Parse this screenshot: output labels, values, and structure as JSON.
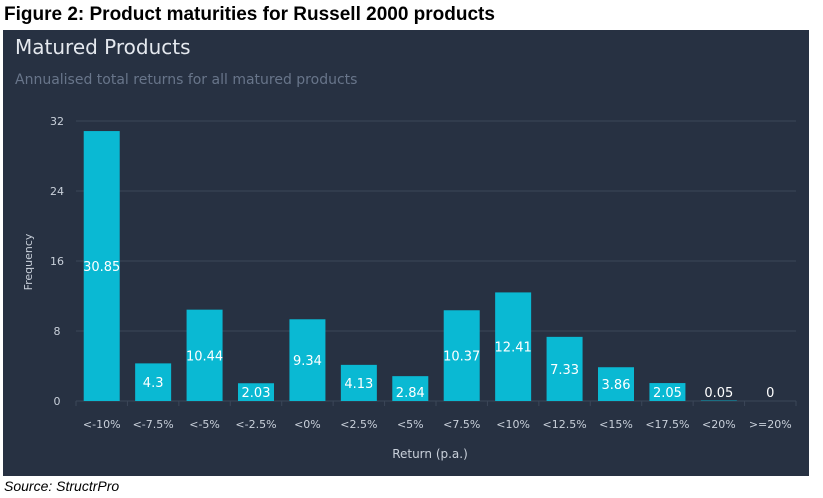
{
  "caption": "Figure 2: Product maturities for Russell 2000 products",
  "source": "Source: StructrPro",
  "colors": {
    "panel": "#273142",
    "bar": "#0ab9d3",
    "grid": "#3b4658",
    "text": "#c9d0da"
  },
  "chart_data": {
    "type": "bar",
    "title": "Matured Products",
    "subtitle": "Annualised total returns for all matured products",
    "xlabel": "Return (p.a.)",
    "ylabel": "Frequency",
    "ylim": [
      0,
      32
    ],
    "yticks": [
      0,
      8,
      16,
      24,
      32
    ],
    "grid": true,
    "categories": [
      "<-10%",
      "<-7.5%",
      "<-5%",
      "<-2.5%",
      "<0%",
      "<2.5%",
      "<5%",
      "<7.5%",
      "<10%",
      "<12.5%",
      "<15%",
      "<17.5%",
      "<20%",
      ">=20%"
    ],
    "values": [
      30.85,
      4.3,
      10.44,
      2.03,
      9.34,
      4.13,
      2.84,
      10.37,
      12.41,
      7.33,
      3.86,
      2.05,
      0.05,
      0
    ],
    "data_labels": [
      "30.85",
      "4.3",
      "10.44",
      "2.03",
      "9.34",
      "4.13",
      "2.84",
      "10.37",
      "12.41",
      "7.33",
      "3.86",
      "2.05",
      "0.05",
      "0"
    ]
  }
}
